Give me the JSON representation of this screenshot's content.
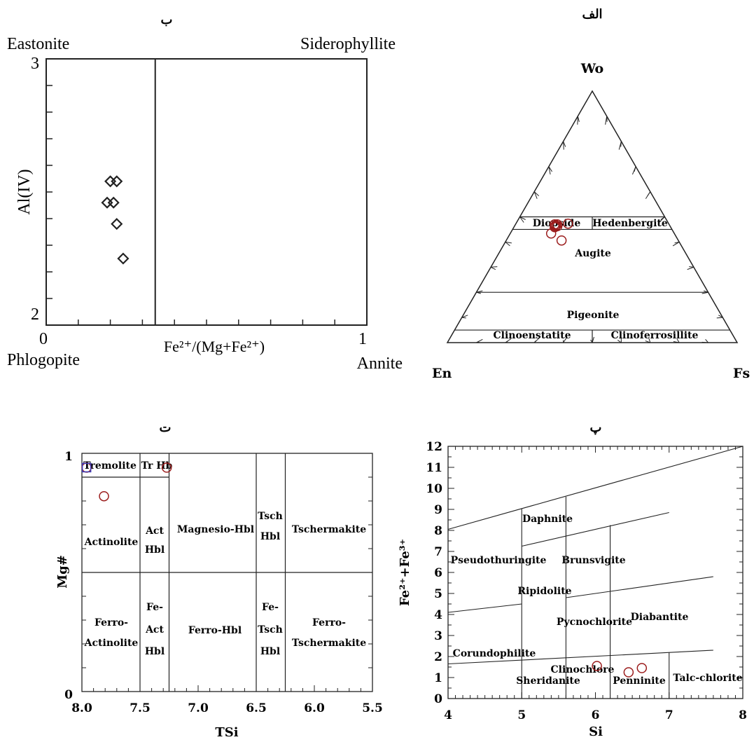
{
  "panels": {
    "b": {
      "label": "ب",
      "corner_labels": {
        "top_left": "Eastonite",
        "top_right": "Siderophyllite",
        "bottom_left": "Phlogopite",
        "bottom_right": "Annite"
      },
      "y_ticks": {
        "top": "3",
        "bottom": "2"
      },
      "x_ticks": {
        "left": "0",
        "right": "1"
      }
    },
    "alef": {
      "label": "الف",
      "apex": {
        "top": "Wo",
        "left": "En",
        "right": "Fs"
      },
      "fields": [
        "Diopside",
        "Hedenbergite",
        "Augite",
        "Pigeonite",
        "Clinoenstatite",
        "Clinoferrosillite"
      ]
    },
    "te": {
      "label": "ت",
      "y_ticks": {
        "top": "1",
        "bottom": "0"
      },
      "fields": [
        {
          "key": "tremolite",
          "text": "Tremolite"
        },
        {
          "key": "trhb",
          "text": "Tr Hb"
        },
        {
          "key": "actinolite",
          "text": "Actinolite"
        },
        {
          "key": "act",
          "text": "Act"
        },
        {
          "key": "acthbl",
          "text": "Hbl"
        },
        {
          "key": "mghbl",
          "text": "Magnesio-Hbl"
        },
        {
          "key": "tsch",
          "text": "Tsch"
        },
        {
          "key": "tschhbl",
          "text": "Hbl"
        },
        {
          "key": "tschermakite",
          "text": "Tschermakite"
        },
        {
          "key": "ferro1",
          "text": "Ferro-"
        },
        {
          "key": "ferroact",
          "text": "Actinolite"
        },
        {
          "key": "fe1",
          "text": "Fe-"
        },
        {
          "key": "feact",
          "text": "Act"
        },
        {
          "key": "fehbl1",
          "text": "Hbl"
        },
        {
          "key": "ferrohbl",
          "text": "Ferro-Hbl"
        },
        {
          "key": "fe2",
          "text": "Fe-"
        },
        {
          "key": "fetsch",
          "text": "Tsch"
        },
        {
          "key": "fehbl2",
          "text": "Hbl"
        },
        {
          "key": "ferro2",
          "text": "Ferro-"
        },
        {
          "key": "ferrotsch",
          "text": "Tschermakite"
        }
      ]
    },
    "pe": {
      "label": "پ",
      "fields": [
        "Daphnite",
        "Pseudothuringite",
        "Brunsvigite",
        "Ripidolite",
        "Diabantite",
        "Pycnochlorite",
        "Corundophilite",
        "Clinochlore",
        "Sheridanite",
        "Penninite",
        "Talc-chlorite"
      ]
    }
  },
  "chart_data": [
    {
      "type": "scatter",
      "id": "biotite",
      "xlabel": "Fe²⁺/(Mg+Fe²⁺)",
      "ylabel": "Al(IV)",
      "xlim": [
        0,
        1
      ],
      "ylim": [
        2,
        3
      ],
      "divider_x": 0.34,
      "marker": "diamond",
      "points": [
        {
          "x": 0.22,
          "y": 2.54
        },
        {
          "x": 0.2,
          "y": 2.54
        },
        {
          "x": 0.19,
          "y": 2.46
        },
        {
          "x": 0.21,
          "y": 2.46
        },
        {
          "x": 0.22,
          "y": 2.38
        },
        {
          "x": 0.24,
          "y": 2.25
        }
      ]
    },
    {
      "type": "scatter",
      "id": "pyroxene",
      "ternary": true,
      "components": [
        "Wo",
        "En",
        "Fs"
      ],
      "marker_color": "#9b1c1c",
      "points": [
        {
          "wo": 47.0,
          "en": 39.5,
          "fs": 13.5
        },
        {
          "wo": 47.0,
          "en": 38.6,
          "fs": 14.4
        },
        {
          "wo": 46.7,
          "en": 39.2,
          "fs": 14.1
        },
        {
          "wo": 46.3,
          "en": 39.7,
          "fs": 14.0
        },
        {
          "wo": 45.9,
          "en": 40.0,
          "fs": 14.1
        },
        {
          "wo": 46.3,
          "en": 38.9,
          "fs": 14.8
        },
        {
          "wo": 47.3,
          "en": 34.7,
          "fs": 18.0
        },
        {
          "wo": 43.4,
          "en": 42.5,
          "fs": 14.1
        },
        {
          "wo": 40.6,
          "en": 40.3,
          "fs": 19.1
        }
      ]
    },
    {
      "type": "scatter",
      "id": "amphibole",
      "xlabel": "TSi",
      "ylabel": "Mg#",
      "xlim": [
        8.0,
        5.5
      ],
      "ylim": [
        0,
        1
      ],
      "x_ticks": [
        "8.0",
        "7.5",
        "7.0",
        "6.5",
        "6.0",
        "5.5"
      ],
      "marker_color": "#9b1c1c",
      "points": [
        {
          "x": 7.96,
          "y": 0.94
        },
        {
          "x": 7.27,
          "y": 0.94
        },
        {
          "x": 7.81,
          "y": 0.82
        }
      ],
      "square_point": {
        "x": 7.96,
        "y": 0.94,
        "color": "#3b3bb8"
      }
    },
    {
      "type": "scatter",
      "id": "chlorite",
      "xlabel": "Si",
      "ylabel": "Fe²⁺+Fe³⁺",
      "xlim": [
        4,
        8
      ],
      "ylim": [
        0,
        12
      ],
      "x_ticks": [
        "4",
        "5",
        "6",
        "7",
        "8"
      ],
      "y_ticks": [
        "0",
        "1",
        "2",
        "3",
        "4",
        "5",
        "6",
        "7",
        "8",
        "9",
        "10",
        "11",
        "12"
      ],
      "marker_color": "#9b1c1c",
      "points": [
        {
          "x": 6.02,
          "y": 1.55
        },
        {
          "x": 6.45,
          "y": 1.25
        },
        {
          "x": 6.63,
          "y": 1.45
        }
      ]
    }
  ]
}
